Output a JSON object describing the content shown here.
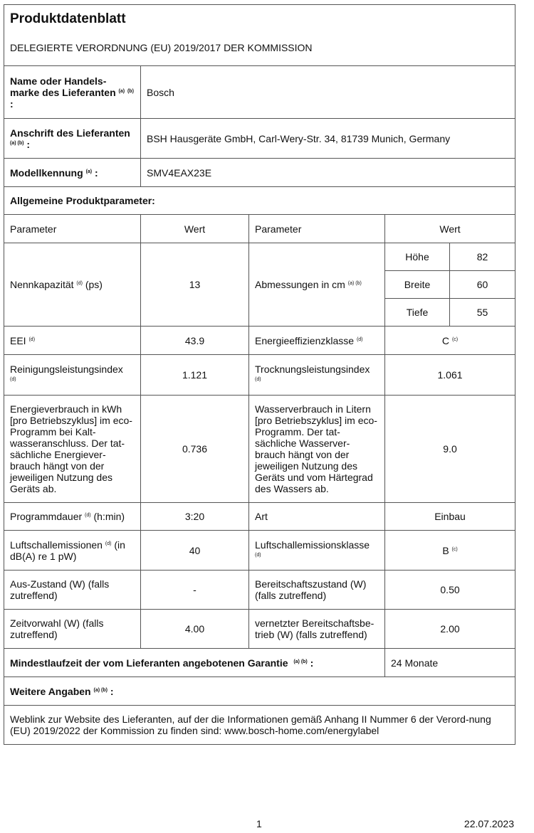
{
  "title": "Produktdatenblatt",
  "subtitle": "DELEGIERTE VERORDNUNG (EU) 2019/2017 DER KOMMISSION",
  "supplier": {
    "label": "Name oder Handels-marke des Lieferanten",
    "fn": "(a)",
    "fn2": "(b)",
    "colon": ":",
    "value": "Bosch"
  },
  "address": {
    "label": "Anschrift des Lieferanten",
    "fn": "(a) (b)",
    "colon": ":",
    "value": "BSH Hausgeräte GmbH, Carl-Wery-Str. 34, 81739 Munich, Germany"
  },
  "model": {
    "label": "Modellkennung",
    "fn": "(a)",
    "colon": ":",
    "value": "SMV4EAX23E"
  },
  "general": "Allgemeine Produktparameter:",
  "headers": {
    "param": "Parameter",
    "value": "Wert"
  },
  "rows": {
    "capacity": {
      "label": "Nennkapazität",
      "fn": "(d)",
      "unit": "(ps)",
      "value": "13"
    },
    "dims": {
      "label": "Abmessungen in cm",
      "fn": "(a) (b)",
      "h_label": "Höhe",
      "h": "82",
      "w_label": "Breite",
      "w": "60",
      "d_label": "Tiefe",
      "d": "55"
    },
    "eei": {
      "label": "EEI",
      "fn": "(d)",
      "value": "43.9"
    },
    "eclass": {
      "label": "Energieeffizienzklasse",
      "fn": "(d)",
      "value": "C",
      "vfn": "(c)"
    },
    "clean": {
      "label": "Reinigungsleistungsindex",
      "fn": "(d)",
      "value": "1.121"
    },
    "dry": {
      "label": "Trocknungsleistungsindex",
      "fn": "(d)",
      "value": "1.061"
    },
    "energy": {
      "label": "Energieverbrauch in kWh [pro Betriebszyklus] im eco-Programm bei Kalt-wasseranschluss. Der tat-sächliche Energiever-brauch hängt von der jeweiligen Nutzung des Geräts ab.",
      "value": "0.736"
    },
    "water": {
      "label": "Wasserverbrauch in Litern [pro Betriebszyklus] im eco-Programm. Der tat-sächliche Wasserver-brauch hängt von der jeweiligen Nutzung des Geräts und vom Härtegrad des Wassers ab.",
      "value": "9.0"
    },
    "duration": {
      "label": "Programmdauer",
      "fn": "(d)",
      "unit": "(h:min)",
      "value": "3:20"
    },
    "type": {
      "label": "Art",
      "value": "Einbau"
    },
    "noise": {
      "label": "Luftschallemissionen",
      "fn": "(d)",
      "unit": "(in dB(A) re 1 pW)",
      "value": "40"
    },
    "noiseclass": {
      "label": "Luftschallemissionsklasse",
      "fn": "(d)",
      "value": "B",
      "vfn": "(c)"
    },
    "off": {
      "label": "Aus-Zustand (W) (falls zutreffend)",
      "value": "-"
    },
    "standby": {
      "label": "Bereitschaftszustand (W) (falls zutreffend)",
      "value": "0.50"
    },
    "delay": {
      "label": "Zeitvorwahl (W) (falls zutreffend)",
      "value": "4.00"
    },
    "netstandby": {
      "label": "vernetzter Bereitschaftsbe-trieb (W) (falls zutreffend)",
      "value": "2.00"
    }
  },
  "warranty": {
    "label": "Mindestlaufzeit der vom Lieferanten angebotenen Garantie",
    "fn": "(a) (b)",
    "colon": ":",
    "value": "24 Monate"
  },
  "further": {
    "label": "Weitere Angaben",
    "fn": "(a) (b)",
    "colon": ":"
  },
  "weblink": "Weblink zur Website des Lieferanten, auf der die Informationen gemäß Anhang II Nummer 6 der Verord-nung (EU) 2019/2022 der Kommission zu finden sind: www.bosch-home.com/energylabel",
  "footer": {
    "page": "1",
    "date": "22.07.2023"
  }
}
